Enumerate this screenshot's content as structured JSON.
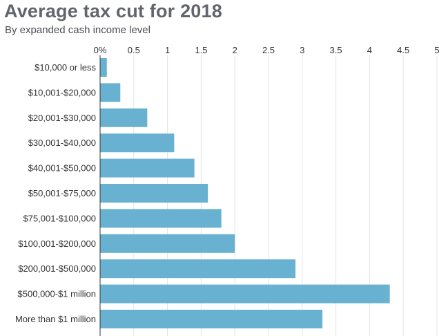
{
  "chart_data": {
    "type": "bar",
    "orientation": "horizontal",
    "title": "Average tax cut for 2018",
    "subtitle": "By expanded cash income level",
    "categories": [
      "$10,000 or less",
      "$10,001-$20,000",
      "$20,001-$30,000",
      "$30,001-$40,000",
      "$40,001-$50,000",
      "$50,001-$75,000",
      "$75,001-$100,000",
      "$100,001-$200,000",
      "$200,001-$500,000",
      "$500,000-$1 million",
      "More than $1 million"
    ],
    "values": [
      0.1,
      0.3,
      0.7,
      1.1,
      1.4,
      1.6,
      1.8,
      2.0,
      2.9,
      4.3,
      3.3
    ],
    "xlim": [
      0,
      5
    ],
    "x_ticks": [
      "0%",
      "0.5",
      "1",
      "1.5",
      "2",
      "2.5",
      "3",
      "3.5",
      "4",
      "4.5",
      "5"
    ],
    "x_axis_position": "top",
    "grid": true,
    "bar_color": "#69b1d0",
    "grid_color": "#e3e3e3"
  }
}
